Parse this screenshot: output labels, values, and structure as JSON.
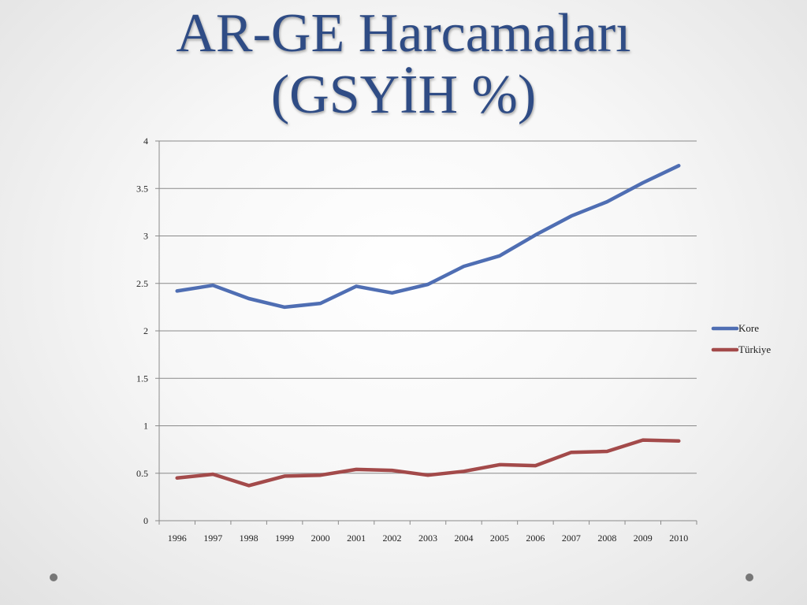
{
  "slide": {
    "title_line1": "AR-GE Harcamaları",
    "title_line2": "(GSYİH %)"
  },
  "chart_data": {
    "type": "line",
    "x": [
      "1996",
      "1997",
      "1998",
      "1999",
      "2000",
      "2001",
      "2002",
      "2003",
      "2004",
      "2005",
      "2006",
      "2007",
      "2008",
      "2009",
      "2010"
    ],
    "series": [
      {
        "name": "Kore",
        "color": "#4f6eb3",
        "values": [
          2.42,
          2.48,
          2.34,
          2.25,
          2.29,
          2.47,
          2.4,
          2.49,
          2.68,
          2.79,
          3.01,
          3.21,
          3.36,
          3.56,
          3.74
        ]
      },
      {
        "name": "Türkiye",
        "color": "#a34a4a",
        "values": [
          0.45,
          0.49,
          0.37,
          0.47,
          0.48,
          0.54,
          0.53,
          0.48,
          0.52,
          0.59,
          0.58,
          0.72,
          0.73,
          0.85,
          0.84
        ]
      }
    ],
    "yticks": [
      "0",
      "0.5",
      "1",
      "1.5",
      "2",
      "2.5",
      "3",
      "3.5",
      "4"
    ],
    "ylim": [
      0,
      4
    ],
    "grid": true,
    "legend": "right"
  }
}
